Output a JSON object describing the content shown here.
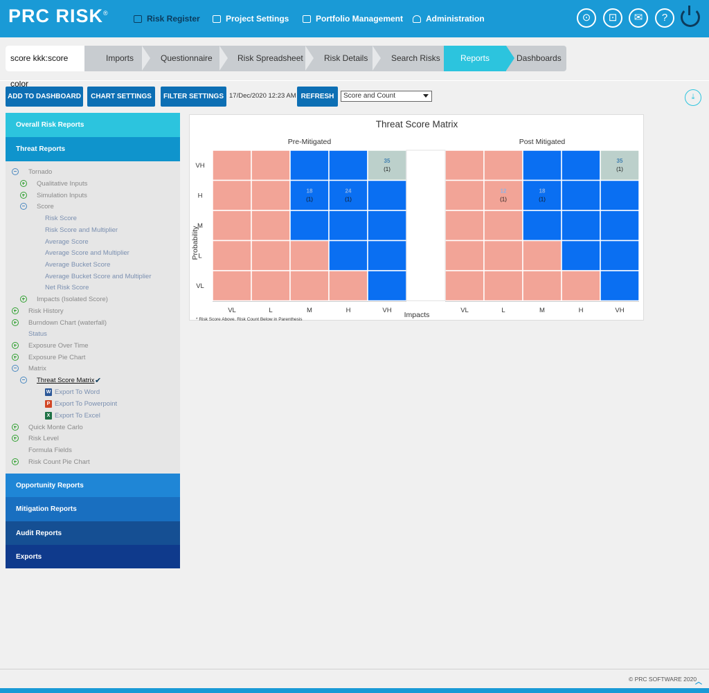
{
  "app": {
    "logo": "PRC RISK",
    "logo_mark": "®",
    "nav": {
      "risk_register": "Risk Register",
      "project_settings": "Project Settings",
      "portfolio_management": "Portfolio Management",
      "administration": "Administration"
    }
  },
  "breadcrumb": {
    "current_project": "score kkk:score color",
    "tabs": [
      "Imports",
      "Questionnaire",
      "Risk Spreadsheet",
      "Risk Details",
      "Search Risks",
      "Reports",
      "Dashboards"
    ],
    "active": "Reports"
  },
  "toolbar": {
    "add_to_dashboard": "ADD TO DASHBOARD",
    "chart_settings": "CHART SETTINGS",
    "filter_settings": "FILTER SETTINGS",
    "timestamp": "17/Dec/2020 12:23 AM",
    "refresh": "REFRESH",
    "display_mode": "Score and Count"
  },
  "sidebar": {
    "sections": {
      "overall": "Overall Risk Reports",
      "threat": "Threat Reports",
      "opportunity": "Opportunity Reports",
      "mitigation": "Mitigation Reports",
      "audit": "Audit Reports",
      "exports": "Exports"
    },
    "tree": {
      "tornado": "Tornado",
      "qualitative_inputs": "Qualitative Inputs",
      "simulation_inputs": "Simulation Inputs",
      "score": "Score",
      "risk_score": "Risk Score",
      "risk_score_multiplier": "Risk Score and Multiplier",
      "average_score": "Average Score",
      "average_score_multiplier": "Average Score and Multiplier",
      "average_bucket_score": "Average Bucket Score",
      "average_bucket_score_multiplier": "Average Bucket Score and Multiplier",
      "net_risk_score": "Net Risk Score",
      "impacts_isolated": "Impacts (Isolated Score)",
      "risk_history": "Risk History",
      "burndown_chart": "Burndown Chart (waterfall)",
      "status": "Status",
      "exposure_over_time": "Exposure Over Time",
      "exposure_pie_chart": "Exposure Pie Chart",
      "matrix": "Matrix",
      "threat_score_matrix": "Threat Score Matrix",
      "export_word": "Export To Word",
      "export_powerpoint": "Export To Powerpoint",
      "export_excel": "Export To Excel",
      "quick_monte_carlo": "Quick Monte Carlo",
      "risk_level": "Risk Level",
      "formula_fields": "Formula Fields",
      "risk_count_pie_chart": "Risk Count Pie Chart"
    }
  },
  "chart_data": {
    "type": "heatmap",
    "title": "Threat Score Matrix",
    "xlabel": "Impacts",
    "ylabel": "Probability",
    "footnote": "* Risk Score Above. Risk Count Below in Parenthesis",
    "x_categories": [
      "VL",
      "L",
      "M",
      "H",
      "VH"
    ],
    "y_categories": [
      "VH",
      "H",
      "M",
      "L",
      "VL"
    ],
    "colors": {
      "salmon": "#f2a497",
      "blue": "#0a6ff2",
      "grey": "#bcd0cb"
    },
    "matrices": [
      {
        "name": "Pre-Mitigated",
        "cell_colors": [
          [
            "salmon",
            "salmon",
            "blue",
            "blue",
            "grey"
          ],
          [
            "salmon",
            "salmon",
            "blue",
            "blue",
            "blue"
          ],
          [
            "salmon",
            "salmon",
            "blue",
            "blue",
            "blue"
          ],
          [
            "salmon",
            "salmon",
            "salmon",
            "blue",
            "blue"
          ],
          [
            "salmon",
            "salmon",
            "salmon",
            "salmon",
            "blue"
          ]
        ],
        "cells": [
          {
            "row": "VH",
            "col": "VH",
            "score": "35",
            "count": "(1)"
          },
          {
            "row": "H",
            "col": "M",
            "score": "18",
            "count": "(1)"
          },
          {
            "row": "H",
            "col": "H",
            "score": "24",
            "count": "(1)"
          }
        ]
      },
      {
        "name": "Post Mitigated",
        "cell_colors": [
          [
            "salmon",
            "salmon",
            "blue",
            "blue",
            "grey"
          ],
          [
            "salmon",
            "salmon",
            "blue",
            "blue",
            "blue"
          ],
          [
            "salmon",
            "salmon",
            "blue",
            "blue",
            "blue"
          ],
          [
            "salmon",
            "salmon",
            "salmon",
            "blue",
            "blue"
          ],
          [
            "salmon",
            "salmon",
            "salmon",
            "salmon",
            "blue"
          ]
        ],
        "cells": [
          {
            "row": "VH",
            "col": "VH",
            "score": "35",
            "count": "(1)"
          },
          {
            "row": "H",
            "col": "L",
            "score": "12",
            "count": "(1)"
          },
          {
            "row": "H",
            "col": "M",
            "score": "18",
            "count": "(1)"
          }
        ]
      }
    ]
  },
  "footer": {
    "copyright": "© PRC SOFTWARE 2020"
  }
}
